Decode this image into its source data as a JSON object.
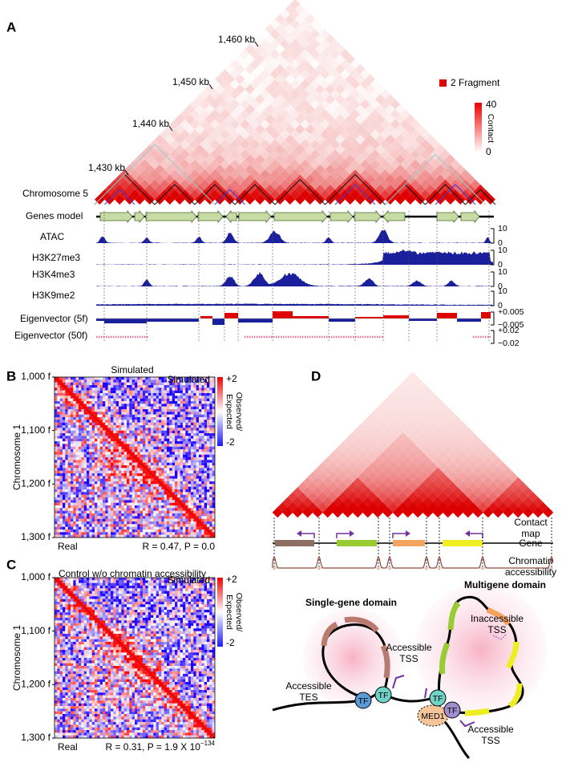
{
  "panel_labels": [
    "A",
    "B",
    "C",
    "D"
  ],
  "panel_a": {
    "coordinates": [
      "1,430 kb",
      "1,440 kb",
      "1,450 kb",
      "1,460 kb"
    ],
    "legend": "2 Fragment",
    "colorbar": {
      "max": "40",
      "min": "0",
      "label": "Contact"
    },
    "chromosome": "Chromosome 5",
    "genes_label": "Genes model",
    "tracks": [
      {
        "name": "ATAC",
        "max": "10",
        "min": "0"
      },
      {
        "name": "H3K27me3",
        "max": "10",
        "min": "0"
      },
      {
        "name": "H3K4me3",
        "max": "10",
        "min": "0"
      },
      {
        "name": "H3K9me2",
        "max": "10",
        "min": "0"
      },
      {
        "name": "Eigenvector (5f)",
        "max": "+0.005",
        "min": "−0.005"
      },
      {
        "name": "Eigenvector (50f)",
        "max": "+0.02",
        "min": "−0.02"
      }
    ]
  },
  "panel_b": {
    "title": "Simulated",
    "corner": "Simulated",
    "real": "Real",
    "stats": "R = 0.47, P = 0.0",
    "yticks": [
      "1,000 f",
      "1,100 f",
      "1,200 f",
      "1,300 f"
    ],
    "ylabel": "Chromosome 1",
    "colorbar": {
      "max": "+2",
      "min": "-2",
      "label": [
        "Observed/",
        "Expected"
      ]
    }
  },
  "panel_c": {
    "title": "Control w/o chromatin accessibility",
    "corner": "Simulated",
    "real": "Real",
    "stats": "R = 0.31, P = 1.9 X 10",
    "stats_exponent": "−134",
    "yticks": [
      "1,000 f",
      "1,100 f",
      "1,200 f",
      "1,300 f"
    ],
    "ylabel": "Chromosome 1",
    "colorbar": {
      "max": "+2",
      "min": "-2",
      "label": [
        "Observed/",
        "Expected"
      ]
    }
  },
  "panel_d": {
    "contact_map": [
      "Contact",
      "map"
    ],
    "gene": "Gene",
    "accessibility": [
      "Chromatin",
      "accessibility"
    ],
    "single_domain": "Single-gene domain",
    "multi_domain": "Multigene domain",
    "inaccessible_tss": [
      "Inaccessible",
      "TSS"
    ],
    "accessible_tss_left": [
      "Accessible",
      "TSS"
    ],
    "accessible_tes": [
      "Accessible",
      "TES"
    ],
    "accessible_tss_bottom": [
      "Accessible",
      "TSS"
    ],
    "tf": [
      "TF",
      "TF",
      "TF",
      "TF"
    ],
    "med1": "MED1"
  }
}
